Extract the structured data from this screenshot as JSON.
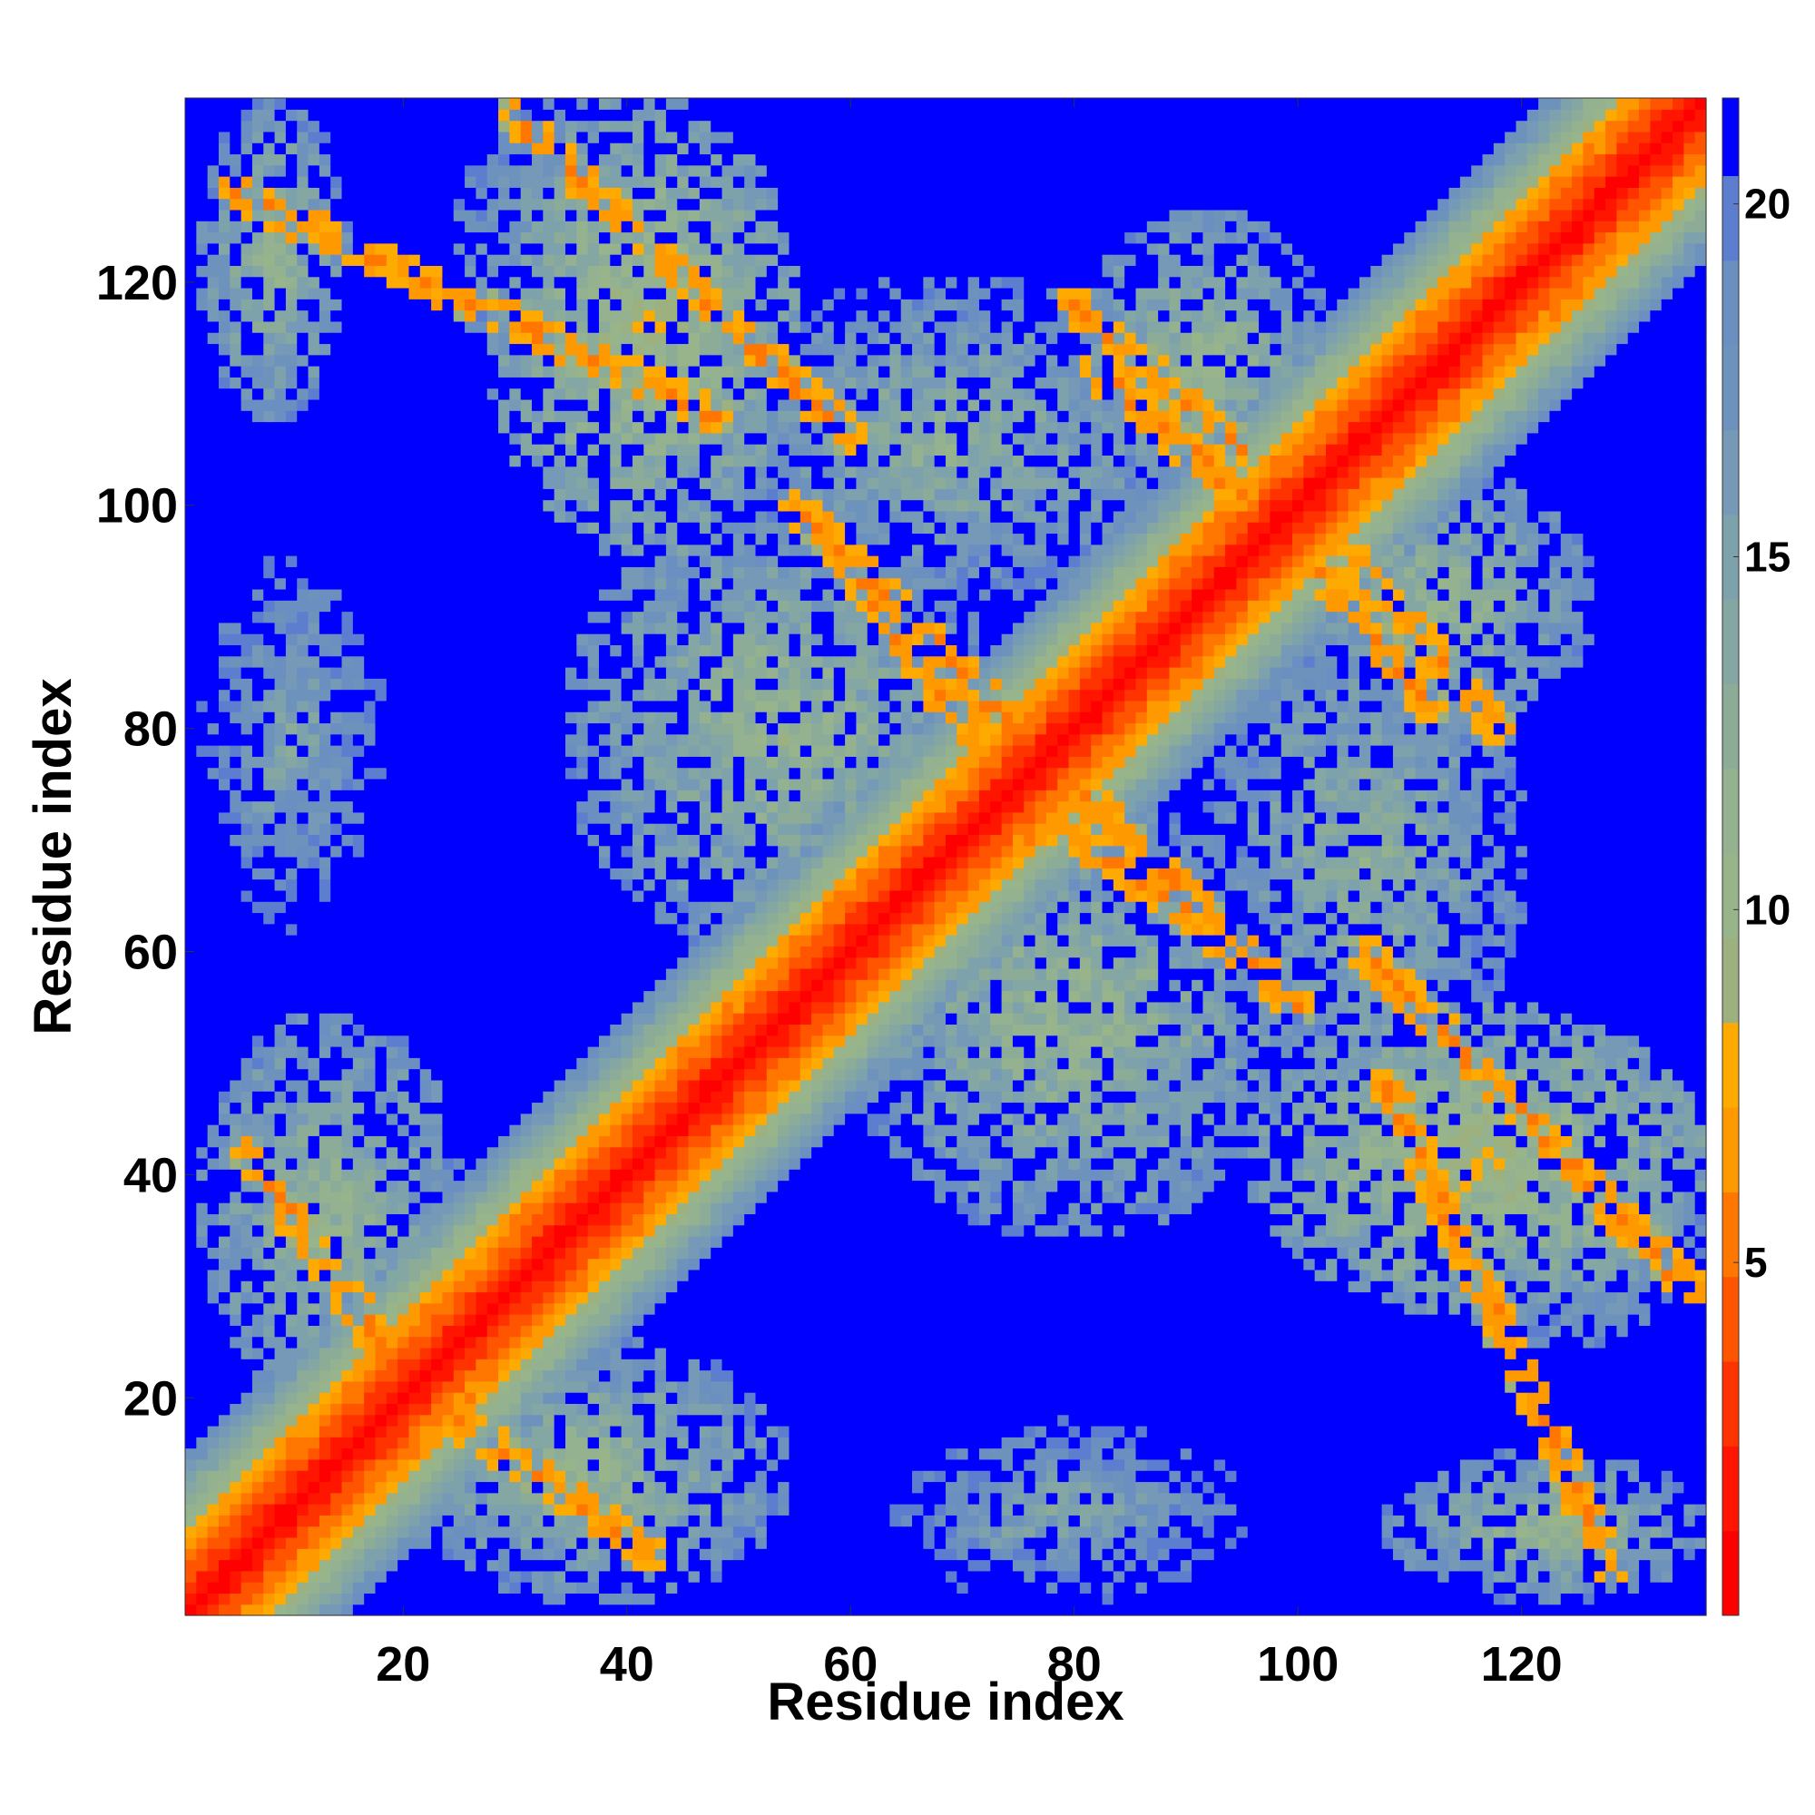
{
  "chart_data": {
    "type": "heatmap",
    "title": "",
    "xlabel": "Residue index",
    "ylabel": "Residue index",
    "n_residues": 136,
    "xlim": [
      1,
      136
    ],
    "ylim": [
      1,
      136
    ],
    "x_ticks": [
      20,
      40,
      60,
      80,
      100,
      120
    ],
    "y_ticks": [
      20,
      40,
      60,
      80,
      100,
      120
    ],
    "value_range": [
      0,
      21.5
    ],
    "colorbar": {
      "ticks": [
        5,
        10,
        15,
        20
      ],
      "levels": [
        0,
        1.2,
        2.4,
        3.6,
        4.8,
        6,
        7.2,
        8.4,
        9.6,
        10.8,
        12,
        13.2,
        14.4,
        15.6,
        16.8,
        18,
        19.2,
        20.4,
        21.5
      ],
      "colors": [
        "#ff0000",
        "#ff1500",
        "#ff3300",
        "#ff5500",
        "#ff7700",
        "#ff9900",
        "#ffaa00",
        "#9cb080",
        "#98b48a",
        "#94b290",
        "#8cac98",
        "#84a7a4",
        "#7ea2ac",
        "#7599b6",
        "#6d93bc",
        "#6a8fc0",
        "#5d7ecf",
        "#0000ff"
      ]
    },
    "diagonal_band": {
      "core_lt": 4,
      "mid_lt": 8,
      "light_lt": 14
    },
    "contact_regions": [
      {
        "x": [
          2,
          15
        ],
        "y": [
          108,
          136
        ],
        "center_value": 11
      },
      {
        "x": [
          108,
          136
        ],
        "y": [
          2,
          15
        ],
        "center_value": 11
      },
      {
        "x": [
          2,
          18
        ],
        "y": [
          64,
          95
        ],
        "center_value": 14
      },
      {
        "x": [
          64,
          95
        ],
        "y": [
          2,
          18
        ],
        "center_value": 14
      },
      {
        "x": [
          2,
          25
        ],
        "y": [
          20,
          54
        ],
        "center_value": 11
      },
      {
        "x": [
          20,
          54
        ],
        "y": [
          2,
          25
        ],
        "center_value": 11
      },
      {
        "x": [
          28,
          55
        ],
        "y": [
          96,
          136
        ],
        "center_value": 9
      },
      {
        "x": [
          96,
          136
        ],
        "y": [
          28,
          55
        ],
        "center_value": 9
      },
      {
        "x": [
          35,
          73
        ],
        "y": [
          60,
          100
        ],
        "center_value": 11
      },
      {
        "x": [
          60,
          100
        ],
        "y": [
          35,
          73
        ],
        "center_value": 11
      },
      {
        "x": [
          48,
          90
        ],
        "y": [
          92,
          120
        ],
        "center_value": 12
      },
      {
        "x": [
          92,
          120
        ],
        "y": [
          48,
          90
        ],
        "center_value": 12
      },
      {
        "x": [
          80,
          103
        ],
        "y": [
          100,
          126
        ],
        "center_value": 11
      },
      {
        "x": [
          100,
          126
        ],
        "y": [
          80,
          103
        ],
        "center_value": 11
      },
      {
        "x": [
          110,
          136
        ],
        "y": [
          25,
          45
        ],
        "center_value": 12
      },
      {
        "x": [
          25,
          45
        ],
        "y": [
          110,
          136
        ],
        "center_value": 12
      },
      {
        "x": [
          62,
          90
        ],
        "y": [
          2,
          15
        ],
        "center_value": 15
      },
      {
        "x": [
          2,
          15
        ],
        "y": [
          62,
          90
        ],
        "center_value": 15
      }
    ],
    "strong_contact_lines": [
      {
        "start": [
          5,
          128
        ],
        "end": [
          48,
          108
        ],
        "value": 6
      },
      {
        "start": [
          128,
          5
        ],
        "end": [
          108,
          48
        ],
        "value": 6
      },
      {
        "start": [
          55,
          100
        ],
        "end": [
          75,
          80
        ],
        "value": 6
      },
      {
        "start": [
          100,
          55
        ],
        "end": [
          80,
          75
        ],
        "value": 6
      },
      {
        "start": [
          75,
          74
        ],
        "end": [
          97,
          58
        ],
        "value": 6
      },
      {
        "start": [
          74,
          75
        ],
        "end": [
          58,
          97
        ],
        "value": 6
      },
      {
        "start": [
          82,
          112
        ],
        "end": [
          96,
          100
        ],
        "value": 6
      },
      {
        "start": [
          112,
          82
        ],
        "end": [
          100,
          96
        ],
        "value": 6
      },
      {
        "start": [
          105,
          95
        ],
        "end": [
          118,
          80
        ],
        "value": 6
      },
      {
        "start": [
          95,
          105
        ],
        "end": [
          80,
          118
        ],
        "value": 6
      },
      {
        "start": [
          106,
          60
        ],
        "end": [
          135,
          30
        ],
        "value": 6
      },
      {
        "start": [
          60,
          106
        ],
        "end": [
          30,
          135
        ],
        "value": 6
      },
      {
        "start": [
          6,
          42
        ],
        "end": [
          20,
          22
        ],
        "value": 6
      },
      {
        "start": [
          42,
          6
        ],
        "end": [
          22,
          20
        ],
        "value": 6
      }
    ]
  }
}
